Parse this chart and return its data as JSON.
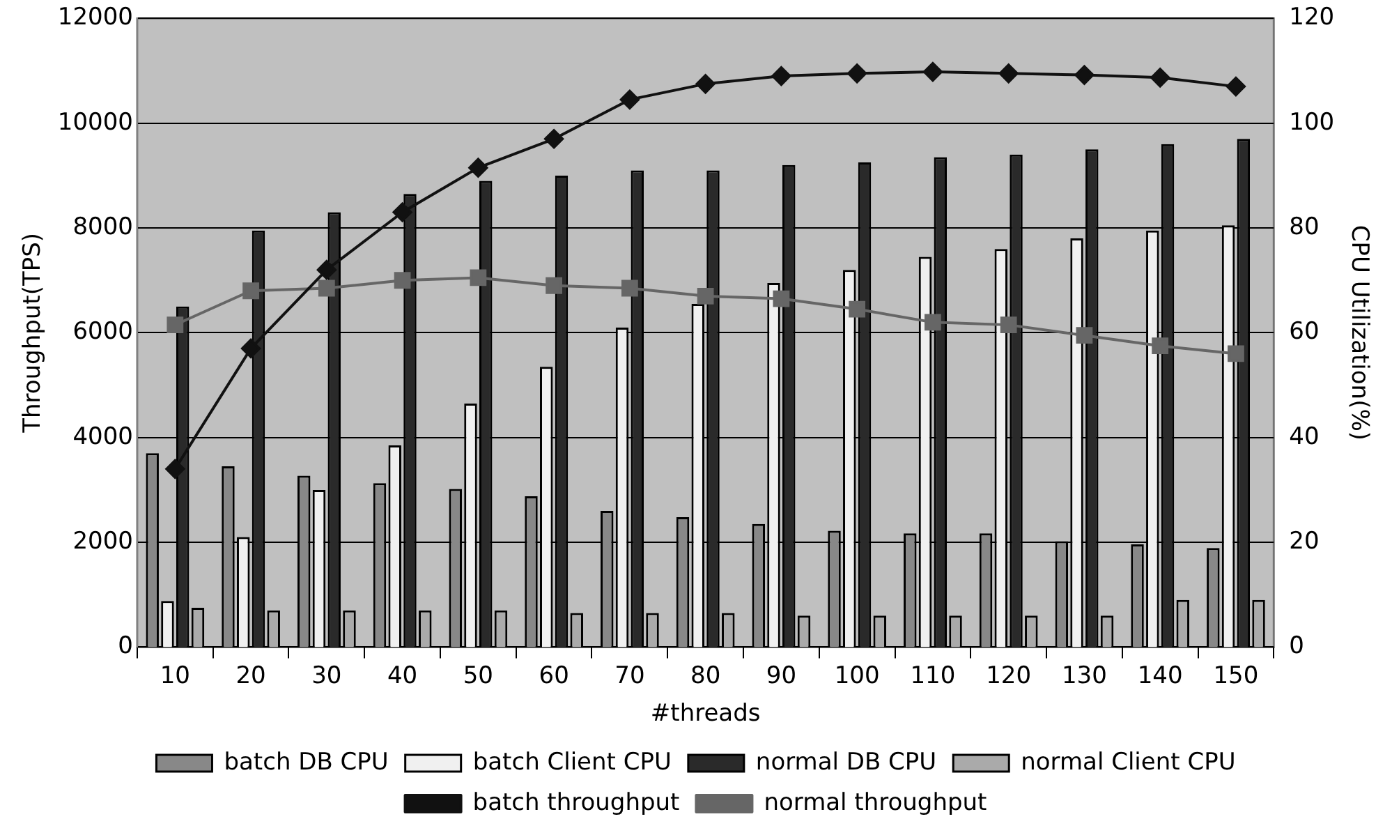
{
  "chart_data": {
    "type": "bar",
    "xlabel": "#threads",
    "ylabel": "Throughput(TPS)",
    "y2label": "CPU Utilization(%)",
    "categories": [
      "10",
      "20",
      "30",
      "40",
      "50",
      "60",
      "70",
      "80",
      "90",
      "100",
      "110",
      "120",
      "130",
      "140",
      "150"
    ],
    "series": [
      {
        "name": "batch DB CPU",
        "axis": "y2",
        "color": "#888888",
        "values": [
          37,
          34.5,
          32.7,
          31.3,
          30.2,
          28.8,
          26,
          24.8,
          23.5,
          22.2,
          21.7,
          21.7,
          20.2,
          19.6,
          18.9
        ]
      },
      {
        "name": "batch Client CPU",
        "axis": "y2",
        "color": "#f0f0f0",
        "values": [
          8.8,
          21,
          30,
          38.5,
          46.5,
          53.5,
          61,
          65.5,
          69.5,
          72,
          74.5,
          76,
          78,
          79.5,
          80.5
        ]
      },
      {
        "name": "normal DB CPU",
        "axis": "y2",
        "color": "#2a2a2a",
        "values": [
          65,
          79.5,
          83,
          86.5,
          89,
          90,
          91,
          91,
          92,
          92.5,
          93.5,
          94,
          95,
          96,
          97
        ]
      },
      {
        "name": "normal Client CPU",
        "axis": "y2",
        "color": "#aaaaaa",
        "values": [
          7.5,
          7,
          7,
          7,
          7,
          6.5,
          6.5,
          6.5,
          6,
          6,
          6,
          6,
          6,
          9,
          9
        ]
      },
      {
        "name": "batch throughput",
        "type": "line",
        "axis": "y",
        "color": "#111111",
        "marker": "diamond",
        "values": [
          3400,
          5700,
          7200,
          8300,
          9150,
          9700,
          10450,
          10750,
          10900,
          10950,
          10980,
          10950,
          10920,
          10870,
          10700
        ]
      },
      {
        "name": "normal throughput",
        "type": "line",
        "axis": "y",
        "color": "#666666",
        "marker": "square",
        "values": [
          6150,
          6800,
          6850,
          7000,
          7050,
          6900,
          6850,
          6700,
          6650,
          6450,
          6200,
          6150,
          5950,
          5750,
          5600
        ]
      }
    ],
    "ylim": [
      0,
      12000
    ],
    "yticks": [
      0,
      2000,
      4000,
      6000,
      8000,
      10000,
      12000
    ],
    "y2lim": [
      0,
      120
    ],
    "y2ticks": [
      0,
      20,
      40,
      60,
      80,
      100,
      120
    ],
    "grid": "y",
    "legend": "bottom"
  }
}
